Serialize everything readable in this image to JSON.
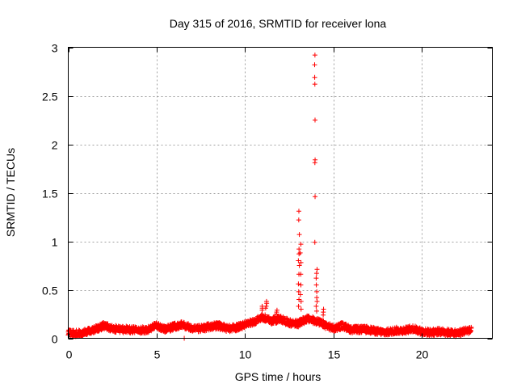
{
  "chart_data": {
    "type": "scatter",
    "title": "Day 315 of 2016, SRMTID for receiver lona",
    "xlabel": "GPS time / hours",
    "ylabel": "SRMTID / TECUs",
    "xlim": [
      0,
      24
    ],
    "ylim": [
      0,
      3
    ],
    "grid": true,
    "marker": "+",
    "color": "#ff0000",
    "xticks": [
      0,
      5,
      10,
      15,
      20
    ],
    "xtick_labels": [
      "0",
      "5",
      "10",
      "15",
      "20"
    ],
    "yticks": [
      0,
      0.5,
      1,
      1.5,
      2,
      2.5,
      3
    ],
    "ytick_labels": [
      "0",
      "0.5",
      "1",
      "1.5",
      "2",
      "2.5",
      "3"
    ],
    "baseline_profile": [
      [
        0.0,
        0.05
      ],
      [
        0.5,
        0.05
      ],
      [
        1.0,
        0.06
      ],
      [
        1.5,
        0.09
      ],
      [
        2.0,
        0.13
      ],
      [
        2.5,
        0.1
      ],
      [
        3.0,
        0.09
      ],
      [
        3.5,
        0.09
      ],
      [
        4.0,
        0.08
      ],
      [
        4.5,
        0.09
      ],
      [
        5.0,
        0.13
      ],
      [
        5.5,
        0.09
      ],
      [
        6.0,
        0.12
      ],
      [
        6.5,
        0.14
      ],
      [
        7.0,
        0.1
      ],
      [
        7.5,
        0.1
      ],
      [
        8.0,
        0.12
      ],
      [
        8.5,
        0.13
      ],
      [
        9.0,
        0.1
      ],
      [
        9.5,
        0.11
      ],
      [
        10.0,
        0.14
      ],
      [
        10.5,
        0.17
      ],
      [
        11.0,
        0.22
      ],
      [
        11.5,
        0.18
      ],
      [
        12.0,
        0.2
      ],
      [
        12.5,
        0.16
      ],
      [
        13.0,
        0.15
      ],
      [
        13.5,
        0.2
      ],
      [
        14.0,
        0.18
      ],
      [
        14.5,
        0.14
      ],
      [
        15.0,
        0.1
      ],
      [
        15.5,
        0.13
      ],
      [
        16.0,
        0.09
      ],
      [
        16.5,
        0.09
      ],
      [
        17.0,
        0.09
      ],
      [
        17.5,
        0.07
      ],
      [
        18.0,
        0.06
      ],
      [
        18.5,
        0.08
      ],
      [
        19.0,
        0.08
      ],
      [
        19.5,
        0.1
      ],
      [
        20.0,
        0.07
      ],
      [
        20.5,
        0.06
      ],
      [
        21.0,
        0.07
      ],
      [
        21.5,
        0.06
      ],
      [
        22.0,
        0.05
      ],
      [
        22.5,
        0.08
      ],
      [
        22.8,
        0.08
      ]
    ],
    "spikes": [
      {
        "x": 13.05,
        "values": [
          1.31,
          1.22,
          1.07,
          0.92,
          0.87,
          0.8,
          0.75,
          0.66,
          0.56,
          0.48,
          0.4,
          0.33
        ]
      },
      {
        "x": 13.15,
        "values": [
          0.97,
          0.88,
          0.78,
          0.66,
          0.55,
          0.45,
          0.38,
          0.3
        ]
      },
      {
        "x": 13.95,
        "values": [
          2.92,
          2.82,
          2.69,
          2.62,
          2.25,
          1.84,
          1.81,
          1.46,
          0.99
        ]
      },
      {
        "x": 14.05,
        "values": [
          0.71,
          0.67,
          0.62,
          0.55,
          0.48,
          0.42,
          0.38,
          0.33,
          0.28
        ]
      },
      {
        "x": 14.45,
        "values": [
          0.3,
          0.27,
          0.24
        ]
      },
      {
        "x": 6.55,
        "values": [
          0.0
        ]
      },
      {
        "x": 11.2,
        "values": [
          0.38,
          0.36,
          0.33,
          0.31
        ]
      },
      {
        "x": 10.95,
        "values": [
          0.33,
          0.31,
          0.29
        ]
      },
      {
        "x": 11.8,
        "values": [
          0.29,
          0.27,
          0.25
        ]
      }
    ]
  }
}
